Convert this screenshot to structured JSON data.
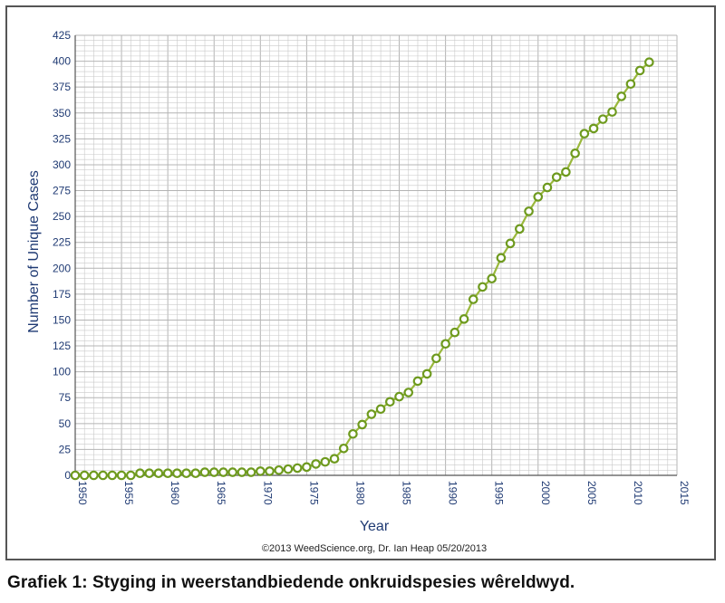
{
  "caption": "Grafiek 1: Styging in weerstandbiedende onkruidspesies wêreldwyd.",
  "chart_data": {
    "type": "line",
    "xlabel": "Year",
    "ylabel": "Number of Unique Cases",
    "credit": "©2013 WeedScience.org, Dr. Ian Heap 05/20/2013",
    "xlim": [
      1950,
      2015
    ],
    "ylim": [
      0,
      425
    ],
    "x_ticks": [
      "1950",
      "1955",
      "1960",
      "1965",
      "1970",
      "1975",
      "1980",
      "1985",
      "1990",
      "1995",
      "2000",
      "2005",
      "2010",
      "2015"
    ],
    "y_ticks": [
      "0",
      "25",
      "50",
      "75",
      "100",
      "125",
      "150",
      "175",
      "200",
      "225",
      "250",
      "275",
      "300",
      "325",
      "350",
      "375",
      "400",
      "425"
    ],
    "grid": true,
    "marker": "circle",
    "colors": {
      "line": "#9ab83c",
      "marker_edge": "#6e9a1e",
      "grid": "#c9c9c9",
      "axis_text": "#1f3a73"
    },
    "series": [
      {
        "x": [
          1950,
          1951,
          1952,
          1953,
          1954,
          1955,
          1956,
          1957,
          1958,
          1959,
          1960,
          1961,
          1962,
          1963,
          1964,
          1965,
          1966,
          1967,
          1968,
          1969,
          1970,
          1971,
          1972,
          1973,
          1974,
          1975,
          1976,
          1977,
          1978,
          1979,
          1980,
          1981,
          1982,
          1983,
          1984,
          1985,
          1986,
          1987,
          1988,
          1989,
          1990,
          1991,
          1992,
          1993,
          1994,
          1995,
          1996,
          1997,
          1998,
          1999,
          2000,
          2001,
          2002,
          2003,
          2004,
          2005,
          2006,
          2007,
          2008,
          2009,
          2010,
          2011,
          2012
        ],
        "y": [
          0,
          0,
          0,
          0,
          0,
          0,
          0,
          2,
          2,
          2,
          2,
          2,
          2,
          2,
          3,
          3,
          3,
          3,
          3,
          3,
          4,
          4,
          5,
          6,
          7,
          8,
          11,
          13,
          16,
          26,
          40,
          49,
          59,
          64,
          71,
          76,
          80,
          91,
          98,
          113,
          127,
          138,
          151,
          170,
          182,
          190,
          210,
          224,
          238,
          255,
          269,
          278,
          288,
          293,
          311,
          330,
          335,
          344,
          351,
          366,
          378,
          391,
          399
        ]
      }
    ]
  }
}
